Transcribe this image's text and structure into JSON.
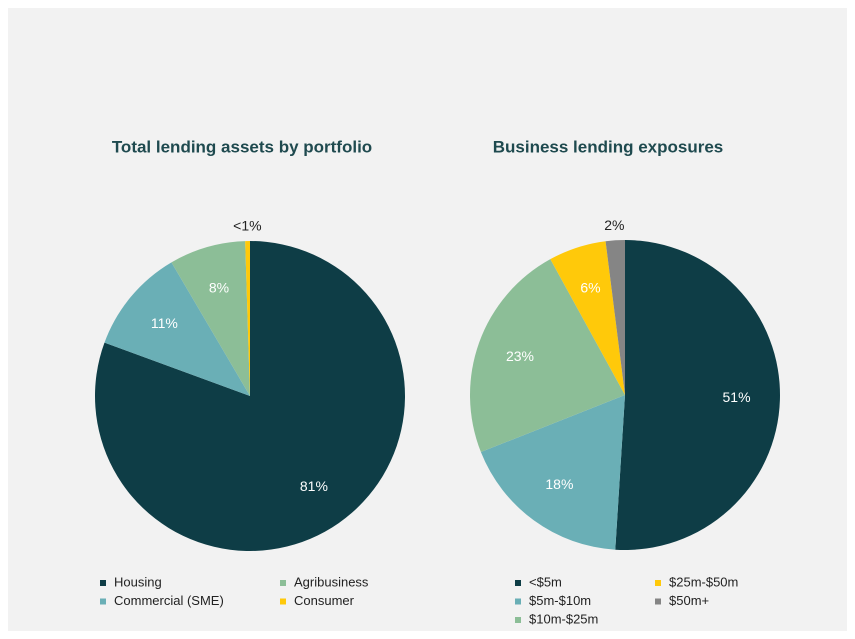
{
  "chart_data": [
    {
      "type": "pie",
      "title": "Total lending assets by portfolio",
      "categories": [
        "Housing",
        "Commercial (SME)",
        "Agribusiness",
        "Consumer"
      ],
      "values": [
        81,
        11,
        8,
        0.5
      ],
      "value_labels": [
        "81%",
        "11%",
        "8%",
        "<1%"
      ],
      "colors": [
        "#0e3d46",
        "#6aafb6",
        "#8cbe97",
        "#ffc90a"
      ]
    },
    {
      "type": "pie",
      "title": "Business lending exposures",
      "categories": [
        "<$5m",
        "$5m-$10m",
        "$10m-$25m",
        "$25m-$50m",
        "$50m+"
      ],
      "values": [
        51,
        18,
        23,
        6,
        2
      ],
      "value_labels": [
        "51%",
        "18%",
        "23%",
        "6%",
        "2%"
      ],
      "colors": [
        "#0e3d46",
        "#6aafb6",
        "#8cbe97",
        "#ffc90a",
        "#858585"
      ]
    }
  ]
}
